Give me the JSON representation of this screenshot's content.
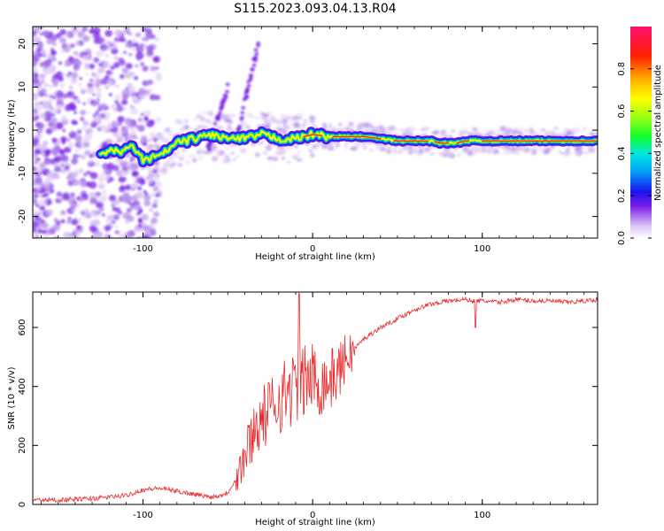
{
  "title": "S115.2023.093.04.13.R04",
  "colors": {
    "snr_line": "#e8282a",
    "axis": "#000000"
  },
  "chart_data": [
    {
      "type": "heatmap",
      "name": "spectrogram",
      "xlabel": "Height of straight line (km)",
      "ylabel": "Frequency (Hz)",
      "xlim": [
        -165,
        168
      ],
      "ylim": [
        -25,
        24
      ],
      "xticks": [
        -100,
        0,
        100
      ],
      "xtick_labels": [
        "-100",
        "0",
        "100"
      ],
      "yticks": [
        -20,
        -10,
        0,
        10,
        20
      ],
      "ytick_labels": [
        "-20",
        "-10",
        "0",
        "10",
        "20"
      ],
      "colorbar": {
        "label": "Normalized spectral amplitude",
        "range": [
          0,
          1
        ],
        "ticks": [
          0.0,
          0.2,
          0.4,
          0.6,
          0.8
        ],
        "tick_labels": [
          "0.0",
          "0.2",
          "0.4",
          "0.6",
          "0.8"
        ]
      },
      "ridge": {
        "x": [
          -125,
          -115,
          -105,
          -100,
          -90,
          -80,
          -70,
          -60,
          -50,
          -40,
          -30,
          -20,
          -10,
          0,
          10,
          20,
          30,
          40,
          50,
          60,
          70,
          75,
          80,
          85,
          90,
          100,
          110,
          120,
          140,
          168
        ],
        "y": [
          -5,
          -5,
          -4,
          -7,
          -6,
          -3,
          -2,
          -1,
          -2,
          -2,
          -1,
          -2,
          -2,
          -1,
          -1.5,
          -1.5,
          -1.5,
          -2,
          -2.5,
          -2.5,
          -2.5,
          -3,
          -3,
          -3,
          -2.5,
          -2.5,
          -2.5,
          -2.5,
          -2.5,
          -2.5
        ]
      }
    },
    {
      "type": "line",
      "name": "snr",
      "xlabel": "Height of straight line (km)",
      "ylabel": "SNR (10 * v/v)",
      "xlim": [
        -165,
        168
      ],
      "ylim": [
        0,
        720
      ],
      "xticks": [
        -100,
        0,
        100
      ],
      "xtick_labels": [
        "-100",
        "0",
        "100"
      ],
      "yticks": [
        0,
        200,
        400,
        600
      ],
      "ytick_labels": [
        "0",
        "200",
        "400",
        "600"
      ],
      "series": [
        {
          "name": "SNR",
          "x": [
            -165,
            -150,
            -130,
            -110,
            -100,
            -90,
            -80,
            -70,
            -60,
            -55,
            -50,
            -45,
            -40,
            -35,
            -30,
            -25,
            -20,
            -15,
            -10,
            -5,
            0,
            5,
            10,
            15,
            20,
            25,
            30,
            40,
            50,
            60,
            70,
            80,
            90,
            95,
            100,
            110,
            120,
            130,
            140,
            150,
            160,
            168
          ],
          "y": [
            15,
            15,
            20,
            30,
            50,
            55,
            45,
            35,
            25,
            30,
            40,
            90,
            160,
            250,
            290,
            320,
            360,
            380,
            400,
            420,
            430,
            410,
            420,
            450,
            500,
            530,
            560,
            600,
            630,
            660,
            680,
            690,
            695,
            690,
            690,
            685,
            695,
            690,
            690,
            685,
            690,
            695
          ]
        }
      ]
    }
  ]
}
